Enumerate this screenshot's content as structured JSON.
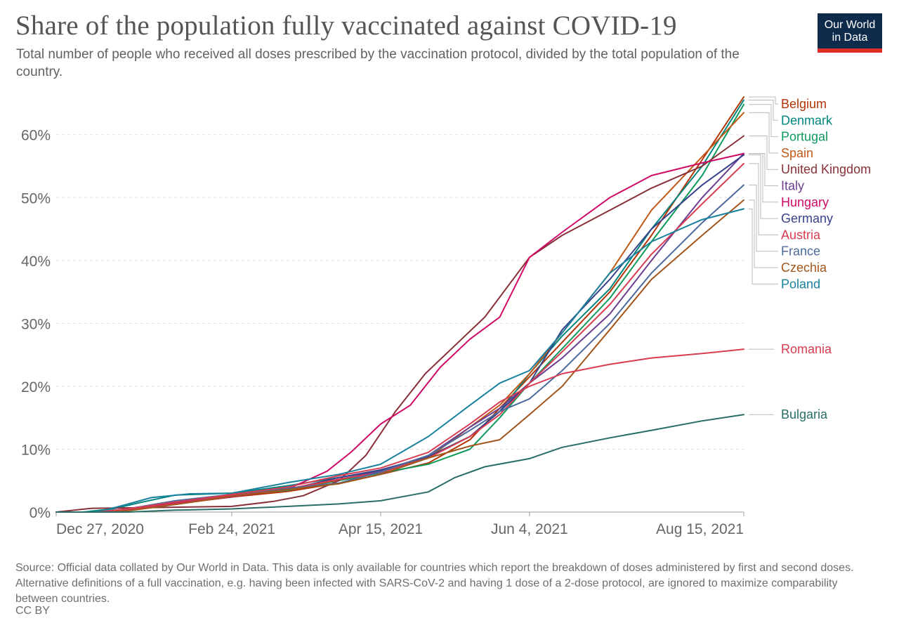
{
  "header": {
    "title": "Share of the population fully vaccinated against COVID-19",
    "subtitle": "Total number of people who received all doses prescribed by the vaccination protocol, divided by the total population of the country.",
    "logo_line1": "Our World",
    "logo_line2": "in Data"
  },
  "footer": {
    "source": "Source: Official data collated by Our World in Data. This data is only available for countries which report the breakdown of doses administered by first and second doses. Alternative definitions of a full vaccination, e.g. having been infected with SARS-CoV-2 and having 1 dose of a 2-dose protocol, are ignored to maximize comparability between countries.",
    "license": "CC BY"
  },
  "colors": {
    "title": "#555555",
    "logo_bg": "#0f2b4c",
    "logo_accent": "#dc2f27",
    "grid": "#dddddd"
  },
  "chart_data": {
    "type": "line",
    "title": "Share of the population fully vaccinated against COVID-19",
    "x_start": "2020-12-27",
    "x_end": "2021-08-15",
    "x_ticks": [
      {
        "date": "2020-12-27",
        "label": "Dec 27, 2020"
      },
      {
        "date": "2021-02-24",
        "label": "Feb 24, 2021"
      },
      {
        "date": "2021-04-15",
        "label": "Apr 15, 2021"
      },
      {
        "date": "2021-06-04",
        "label": "Jun 4, 2021"
      },
      {
        "date": "2021-08-15",
        "label": "Aug 15, 2021"
      }
    ],
    "y_ticks": [
      0,
      10,
      20,
      30,
      40,
      50,
      60
    ],
    "y_tick_labels": [
      "0%",
      "10%",
      "20%",
      "30%",
      "40%",
      "50%",
      "60%"
    ],
    "ylim": [
      0,
      66
    ],
    "grid": true,
    "legend": "right",
    "series": [
      {
        "name": "Belgium",
        "color": "#b13507",
        "points": [
          [
            "2020-12-27",
            0
          ],
          [
            "2021-01-10",
            0
          ],
          [
            "2021-01-24",
            0.7
          ],
          [
            "2021-02-07",
            1.4
          ],
          [
            "2021-02-24",
            2.4
          ],
          [
            "2021-03-15",
            3.3
          ],
          [
            "2021-04-01",
            4.6
          ],
          [
            "2021-04-15",
            6.0
          ],
          [
            "2021-05-01",
            7.8
          ],
          [
            "2021-05-15",
            11.5
          ],
          [
            "2021-05-25",
            16.5
          ],
          [
            "2021-06-04",
            21.5
          ],
          [
            "2021-06-15",
            27.0
          ],
          [
            "2021-07-01",
            35.0
          ],
          [
            "2021-07-15",
            44.0
          ],
          [
            "2021-08-01",
            56.0
          ],
          [
            "2021-08-15",
            66.0
          ]
        ]
      },
      {
        "name": "Denmark",
        "color": "#00847e",
        "points": [
          [
            "2020-12-27",
            0
          ],
          [
            "2021-01-05",
            0
          ],
          [
            "2021-01-15",
            0.5
          ],
          [
            "2021-01-25",
            1.6
          ],
          [
            "2021-02-05",
            2.7
          ],
          [
            "2021-02-24",
            3.0
          ],
          [
            "2021-03-15",
            4.2
          ],
          [
            "2021-04-01",
            5.5
          ],
          [
            "2021-04-15",
            6.6
          ],
          [
            "2021-05-01",
            8.8
          ],
          [
            "2021-05-15",
            12.0
          ],
          [
            "2021-05-25",
            16.0
          ],
          [
            "2021-06-04",
            22.0
          ],
          [
            "2021-06-15",
            28.0
          ],
          [
            "2021-07-01",
            35.5
          ],
          [
            "2021-07-15",
            45.0
          ],
          [
            "2021-08-01",
            55.0
          ],
          [
            "2021-08-15",
            65.5
          ]
        ]
      },
      {
        "name": "Portugal",
        "color": "#0f9a5c",
        "points": [
          [
            "2020-12-27",
            0
          ],
          [
            "2021-01-10",
            0
          ],
          [
            "2021-01-20",
            0.3
          ],
          [
            "2021-02-05",
            1.6
          ],
          [
            "2021-02-24",
            2.7
          ],
          [
            "2021-03-15",
            3.5
          ],
          [
            "2021-04-01",
            5.0
          ],
          [
            "2021-04-15",
            6.2
          ],
          [
            "2021-05-01",
            7.6
          ],
          [
            "2021-05-15",
            10.0
          ],
          [
            "2021-05-25",
            15.0
          ],
          [
            "2021-06-04",
            20.5
          ],
          [
            "2021-06-15",
            26.0
          ],
          [
            "2021-07-01",
            34.0
          ],
          [
            "2021-07-15",
            43.0
          ],
          [
            "2021-08-01",
            53.5
          ],
          [
            "2021-08-15",
            64.8
          ]
        ]
      },
      {
        "name": "Spain",
        "color": "#c05917",
        "points": [
          [
            "2020-12-27",
            0
          ],
          [
            "2021-01-10",
            0
          ],
          [
            "2021-01-20",
            0.2
          ],
          [
            "2021-02-05",
            1.4
          ],
          [
            "2021-02-24",
            2.7
          ],
          [
            "2021-03-15",
            3.6
          ],
          [
            "2021-04-01",
            5.1
          ],
          [
            "2021-04-15",
            6.6
          ],
          [
            "2021-05-01",
            8.6
          ],
          [
            "2021-05-15",
            13.5
          ],
          [
            "2021-05-25",
            17.0
          ],
          [
            "2021-06-04",
            22.0
          ],
          [
            "2021-06-15",
            28.5
          ],
          [
            "2021-07-01",
            38.0
          ],
          [
            "2021-07-15",
            48.0
          ],
          [
            "2021-08-01",
            56.5
          ],
          [
            "2021-08-15",
            63.5
          ]
        ]
      },
      {
        "name": "United Kingdom",
        "color": "#883039",
        "points": [
          [
            "2020-12-27",
            0
          ],
          [
            "2021-01-08",
            0.6
          ],
          [
            "2021-01-25",
            0.7
          ],
          [
            "2021-02-10",
            0.8
          ],
          [
            "2021-02-24",
            0.9
          ],
          [
            "2021-03-10",
            1.7
          ],
          [
            "2021-03-20",
            2.6
          ],
          [
            "2021-04-01",
            5.0
          ],
          [
            "2021-04-10",
            9.0
          ],
          [
            "2021-04-20",
            16.0
          ],
          [
            "2021-04-30",
            22.0
          ],
          [
            "2021-05-10",
            26.5
          ],
          [
            "2021-05-20",
            31.0
          ],
          [
            "2021-06-04",
            40.5
          ],
          [
            "2021-06-15",
            44.0
          ],
          [
            "2021-07-01",
            48.0
          ],
          [
            "2021-07-15",
            51.5
          ],
          [
            "2021-08-01",
            55.0
          ],
          [
            "2021-08-15",
            59.8
          ]
        ]
      },
      {
        "name": "Italy",
        "color": "#6d3e91",
        "points": [
          [
            "2020-12-27",
            0
          ],
          [
            "2021-01-10",
            0
          ],
          [
            "2021-01-20",
            0.4
          ],
          [
            "2021-02-05",
            1.6
          ],
          [
            "2021-02-24",
            2.5
          ],
          [
            "2021-03-15",
            3.7
          ],
          [
            "2021-04-01",
            5.2
          ],
          [
            "2021-04-15",
            6.5
          ],
          [
            "2021-05-01",
            9.0
          ],
          [
            "2021-05-15",
            13.5
          ],
          [
            "2021-05-25",
            16.5
          ],
          [
            "2021-06-04",
            20.5
          ],
          [
            "2021-06-15",
            24.5
          ],
          [
            "2021-07-01",
            31.5
          ],
          [
            "2021-07-15",
            40.0
          ],
          [
            "2021-08-01",
            50.0
          ],
          [
            "2021-08-15",
            57.0
          ]
        ]
      },
      {
        "name": "Hungary",
        "color": "#cf0a66",
        "points": [
          [
            "2020-12-27",
            0
          ],
          [
            "2021-01-10",
            0
          ],
          [
            "2021-01-20",
            0.4
          ],
          [
            "2021-02-05",
            1.4
          ],
          [
            "2021-02-24",
            2.4
          ],
          [
            "2021-03-15",
            3.7
          ],
          [
            "2021-03-28",
            6.5
          ],
          [
            "2021-04-05",
            9.5
          ],
          [
            "2021-04-15",
            14.0
          ],
          [
            "2021-04-25",
            17.0
          ],
          [
            "2021-05-05",
            23.0
          ],
          [
            "2021-05-15",
            27.5
          ],
          [
            "2021-05-25",
            31.0
          ],
          [
            "2021-06-04",
            40.5
          ],
          [
            "2021-06-15",
            44.5
          ],
          [
            "2021-07-01",
            50.0
          ],
          [
            "2021-07-15",
            53.5
          ],
          [
            "2021-08-01",
            55.5
          ],
          [
            "2021-08-15",
            57.0
          ]
        ]
      },
      {
        "name": "Germany",
        "color": "#38428a",
        "points": [
          [
            "2020-12-27",
            0
          ],
          [
            "2021-01-10",
            0
          ],
          [
            "2021-01-20",
            0.5
          ],
          [
            "2021-02-05",
            1.6
          ],
          [
            "2021-02-24",
            2.8
          ],
          [
            "2021-03-15",
            3.6
          ],
          [
            "2021-04-01",
            5.5
          ],
          [
            "2021-04-15",
            6.7
          ],
          [
            "2021-05-01",
            8.8
          ],
          [
            "2021-05-15",
            12.0
          ],
          [
            "2021-05-25",
            16.0
          ],
          [
            "2021-06-04",
            20.5
          ],
          [
            "2021-06-15",
            29.0
          ],
          [
            "2021-07-01",
            37.0
          ],
          [
            "2021-07-15",
            45.0
          ],
          [
            "2021-08-01",
            52.0
          ],
          [
            "2021-08-15",
            56.8
          ]
        ]
      },
      {
        "name": "Austria",
        "color": "#d73c50",
        "points": [
          [
            "2020-12-27",
            0
          ],
          [
            "2021-01-10",
            0
          ],
          [
            "2021-01-20",
            0.3
          ],
          [
            "2021-02-05",
            1.3
          ],
          [
            "2021-02-24",
            2.6
          ],
          [
            "2021-03-15",
            3.7
          ],
          [
            "2021-04-01",
            5.2
          ],
          [
            "2021-04-15",
            6.3
          ],
          [
            "2021-05-01",
            8.6
          ],
          [
            "2021-05-15",
            12.0
          ],
          [
            "2021-05-25",
            15.5
          ],
          [
            "2021-06-04",
            20.5
          ],
          [
            "2021-06-15",
            25.5
          ],
          [
            "2021-07-01",
            33.0
          ],
          [
            "2021-07-15",
            41.0
          ],
          [
            "2021-08-01",
            49.0
          ],
          [
            "2021-08-15",
            55.4
          ]
        ]
      },
      {
        "name": "France",
        "color": "#4c6a9c",
        "points": [
          [
            "2020-12-27",
            0
          ],
          [
            "2021-01-10",
            0
          ],
          [
            "2021-01-20",
            0.5
          ],
          [
            "2021-02-05",
            1.8
          ],
          [
            "2021-02-24",
            2.8
          ],
          [
            "2021-03-15",
            3.8
          ],
          [
            "2021-04-01",
            4.6
          ],
          [
            "2021-04-15",
            6.4
          ],
          [
            "2021-05-01",
            9.0
          ],
          [
            "2021-05-15",
            13.0
          ],
          [
            "2021-05-25",
            16.0
          ],
          [
            "2021-06-04",
            18.0
          ],
          [
            "2021-06-15",
            22.5
          ],
          [
            "2021-07-01",
            30.0
          ],
          [
            "2021-07-15",
            38.0
          ],
          [
            "2021-08-01",
            46.0
          ],
          [
            "2021-08-15",
            52.0
          ]
        ]
      },
      {
        "name": "Czechia",
        "color": "#a2551b",
        "points": [
          [
            "2020-12-27",
            0
          ],
          [
            "2021-01-10",
            0
          ],
          [
            "2021-01-20",
            0.2
          ],
          [
            "2021-02-05",
            1.2
          ],
          [
            "2021-02-24",
            2.5
          ],
          [
            "2021-03-15",
            3.6
          ],
          [
            "2021-04-01",
            4.5
          ],
          [
            "2021-04-15",
            6.0
          ],
          [
            "2021-05-01",
            8.6
          ],
          [
            "2021-05-15",
            10.5
          ],
          [
            "2021-05-25",
            11.5
          ],
          [
            "2021-06-04",
            15.5
          ],
          [
            "2021-06-15",
            20.0
          ],
          [
            "2021-07-01",
            29.0
          ],
          [
            "2021-07-15",
            37.0
          ],
          [
            "2021-08-01",
            44.0
          ],
          [
            "2021-08-15",
            49.6
          ]
        ]
      },
      {
        "name": "Poland",
        "color": "#18819e",
        "points": [
          [
            "2020-12-27",
            0
          ],
          [
            "2021-01-10",
            0
          ],
          [
            "2021-01-18",
            1.0
          ],
          [
            "2021-01-28",
            2.3
          ],
          [
            "2021-02-10",
            2.9
          ],
          [
            "2021-02-24",
            3.0
          ],
          [
            "2021-03-15",
            4.7
          ],
          [
            "2021-04-01",
            6.0
          ],
          [
            "2021-04-15",
            7.6
          ],
          [
            "2021-05-01",
            12.0
          ],
          [
            "2021-05-15",
            17.0
          ],
          [
            "2021-05-25",
            20.5
          ],
          [
            "2021-06-04",
            22.5
          ],
          [
            "2021-06-15",
            28.5
          ],
          [
            "2021-07-01",
            38.0
          ],
          [
            "2021-07-15",
            43.0
          ],
          [
            "2021-08-01",
            46.5
          ],
          [
            "2021-08-15",
            48.2
          ]
        ]
      },
      {
        "name": "Romania",
        "color": "#d73c50",
        "points": [
          [
            "2020-12-27",
            0
          ],
          [
            "2021-01-10",
            0
          ],
          [
            "2021-01-20",
            0.5
          ],
          [
            "2021-02-05",
            1.6
          ],
          [
            "2021-02-24",
            2.8
          ],
          [
            "2021-03-15",
            4.0
          ],
          [
            "2021-04-01",
            5.8
          ],
          [
            "2021-04-15",
            7.0
          ],
          [
            "2021-05-01",
            9.5
          ],
          [
            "2021-05-15",
            14.0
          ],
          [
            "2021-05-25",
            17.5
          ],
          [
            "2021-06-04",
            20.0
          ],
          [
            "2021-06-15",
            22.0
          ],
          [
            "2021-07-01",
            23.5
          ],
          [
            "2021-07-15",
            24.5
          ],
          [
            "2021-08-01",
            25.2
          ],
          [
            "2021-08-15",
            25.9
          ]
        ]
      },
      {
        "name": "Bulgaria",
        "color": "#286d66",
        "points": [
          [
            "2020-12-27",
            0
          ],
          [
            "2021-01-20",
            0
          ],
          [
            "2021-02-05",
            0.3
          ],
          [
            "2021-02-24",
            0.5
          ],
          [
            "2021-03-15",
            0.9
          ],
          [
            "2021-04-01",
            1.3
          ],
          [
            "2021-04-15",
            1.8
          ],
          [
            "2021-05-01",
            3.2
          ],
          [
            "2021-05-10",
            5.5
          ],
          [
            "2021-05-20",
            7.2
          ],
          [
            "2021-06-04",
            8.5
          ],
          [
            "2021-06-15",
            10.3
          ],
          [
            "2021-07-01",
            11.8
          ],
          [
            "2021-07-15",
            13.0
          ],
          [
            "2021-08-01",
            14.5
          ],
          [
            "2021-08-15",
            15.5
          ]
        ]
      }
    ]
  }
}
